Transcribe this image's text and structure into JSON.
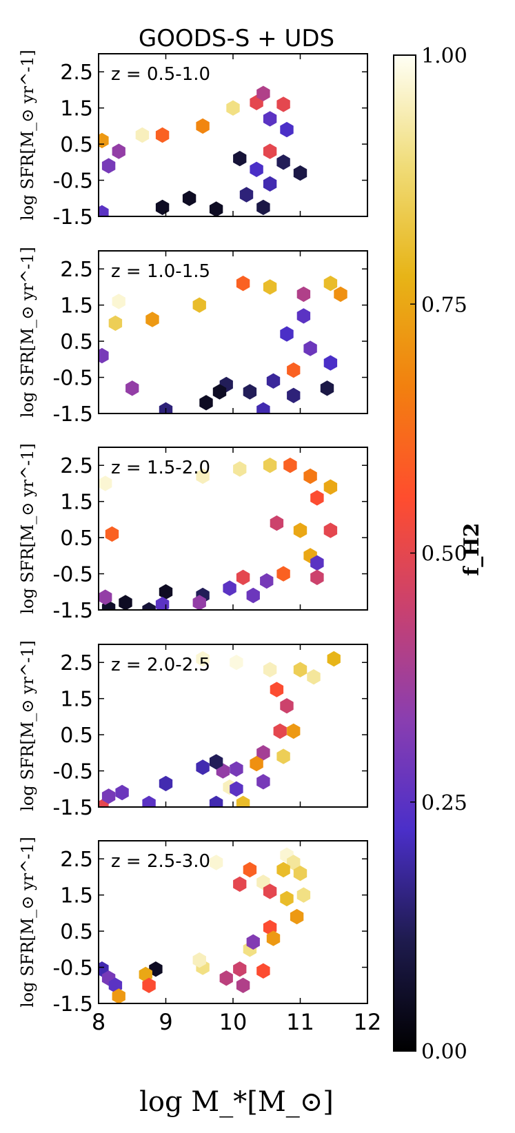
{
  "figure": {
    "title": "GOODS-S + UDS",
    "xlabel": "log M_*[M_⊙]",
    "ylabel": "log SFR[M_⊙ yr^-1]",
    "x_ticks": [
      "8",
      "9",
      "10",
      "11",
      "12"
    ],
    "y_ticks": [
      "2.5",
      "1.5",
      "0.5",
      "-0.5",
      "-1.5"
    ],
    "colorbar": {
      "label": "f_H2",
      "ticks": [
        "1.00",
        "0.75",
        "0.50",
        "0.25",
        "0.00"
      ],
      "range": [
        0,
        1
      ],
      "colormap": [
        "#000000",
        "#1e1b4e",
        "#4b2fc9",
        "#8a3eb0",
        "#c9416f",
        "#ff4d2e",
        "#f2800f",
        "#e7b417",
        "#f0dc78",
        "#fffff5"
      ]
    }
  },
  "chart_data": [
    {
      "type": "hexbin",
      "label": "z = 0.5-1.0",
      "xlim": [
        8,
        12
      ],
      "ylim": [
        -1.5,
        3.0
      ],
      "xlabel": "log M_*[M_⊙]",
      "ylabel": "log SFR[M_⊙ yr^-1]",
      "bins": [
        {
          "x": 8.05,
          "y": 0.6,
          "f": 0.72
        },
        {
          "x": 8.65,
          "y": 0.75,
          "f": 0.95
        },
        {
          "x": 8.95,
          "y": 0.75,
          "f": 0.6
        },
        {
          "x": 9.55,
          "y": 1.0,
          "f": 0.68
        },
        {
          "x": 10.0,
          "y": 1.5,
          "f": 0.9
        },
        {
          "x": 10.35,
          "y": 1.65,
          "f": 0.5
        },
        {
          "x": 10.45,
          "y": 1.9,
          "f": 0.4
        },
        {
          "x": 10.75,
          "y": 1.6,
          "f": 0.5
        },
        {
          "x": 10.55,
          "y": 1.2,
          "f": 0.25
        },
        {
          "x": 10.8,
          "y": 0.9,
          "f": 0.22
        },
        {
          "x": 10.55,
          "y": 0.3,
          "f": 0.5
        },
        {
          "x": 10.75,
          "y": 0.0,
          "f": 0.12
        },
        {
          "x": 10.35,
          "y": -0.2,
          "f": 0.22
        },
        {
          "x": 11.0,
          "y": -0.3,
          "f": 0.1
        },
        {
          "x": 10.55,
          "y": -0.6,
          "f": 0.2
        },
        {
          "x": 10.2,
          "y": -0.9,
          "f": 0.15
        },
        {
          "x": 10.45,
          "y": -1.25,
          "f": 0.1
        },
        {
          "x": 9.75,
          "y": -1.3,
          "f": 0.05
        },
        {
          "x": 9.35,
          "y": -1.0,
          "f": 0.05
        },
        {
          "x": 8.95,
          "y": -1.25,
          "f": 0.05
        },
        {
          "x": 8.15,
          "y": -0.1,
          "f": 0.3
        },
        {
          "x": 8.05,
          "y": -1.4,
          "f": 0.25
        },
        {
          "x": 8.3,
          "y": 0.3,
          "f": 0.35
        },
        {
          "x": 10.1,
          "y": 0.1,
          "f": 0.08
        }
      ]
    },
    {
      "type": "hexbin",
      "label": "z = 1.0-1.5",
      "xlim": [
        8,
        12
      ],
      "ylim": [
        -1.5,
        3.0
      ],
      "xlabel": "log M_*[M_⊙]",
      "ylabel": "log SFR[M_⊙ yr^-1]",
      "bins": [
        {
          "x": 8.3,
          "y": 1.6,
          "f": 0.97
        },
        {
          "x": 8.25,
          "y": 1.0,
          "f": 0.85
        },
        {
          "x": 8.8,
          "y": 1.1,
          "f": 0.72
        },
        {
          "x": 9.5,
          "y": 1.5,
          "f": 0.8
        },
        {
          "x": 10.15,
          "y": 2.1,
          "f": 0.6
        },
        {
          "x": 10.55,
          "y": 2.0,
          "f": 0.8
        },
        {
          "x": 11.05,
          "y": 1.8,
          "f": 0.4
        },
        {
          "x": 11.45,
          "y": 2.1,
          "f": 0.8
        },
        {
          "x": 11.6,
          "y": 1.8,
          "f": 0.7
        },
        {
          "x": 11.05,
          "y": 1.2,
          "f": 0.25
        },
        {
          "x": 10.8,
          "y": 0.7,
          "f": 0.22
        },
        {
          "x": 11.15,
          "y": 0.3,
          "f": 0.28
        },
        {
          "x": 11.45,
          "y": -0.1,
          "f": 0.22
        },
        {
          "x": 10.9,
          "y": -0.3,
          "f": 0.6
        },
        {
          "x": 10.6,
          "y": -0.6,
          "f": 0.18
        },
        {
          "x": 10.25,
          "y": -0.9,
          "f": 0.12
        },
        {
          "x": 10.9,
          "y": -1.0,
          "f": 0.15
        },
        {
          "x": 11.4,
          "y": -0.8,
          "f": 0.1
        },
        {
          "x": 9.6,
          "y": -1.2,
          "f": 0.05
        },
        {
          "x": 9.0,
          "y": -1.4,
          "f": 0.15
        },
        {
          "x": 10.45,
          "y": -1.4,
          "f": 0.2
        },
        {
          "x": 8.05,
          "y": 0.1,
          "f": 0.3
        },
        {
          "x": 8.5,
          "y": -0.8,
          "f": 0.35
        },
        {
          "x": 9.9,
          "y": -0.7,
          "f": 0.12
        },
        {
          "x": 9.8,
          "y": -0.9,
          "f": 0.05
        }
      ]
    },
    {
      "type": "hexbin",
      "label": "z = 1.5-2.0",
      "xlim": [
        8,
        12
      ],
      "ylim": [
        -1.5,
        3.0
      ],
      "xlabel": "log M_*[M_⊙]",
      "ylabel": "log SFR[M_⊙ yr^-1]",
      "bins": [
        {
          "x": 8.1,
          "y": 2.0,
          "f": 0.97
        },
        {
          "x": 9.55,
          "y": 2.2,
          "f": 0.95
        },
        {
          "x": 10.1,
          "y": 2.4,
          "f": 0.92
        },
        {
          "x": 10.55,
          "y": 2.5,
          "f": 0.85
        },
        {
          "x": 10.85,
          "y": 2.5,
          "f": 0.6
        },
        {
          "x": 11.15,
          "y": 2.2,
          "f": 0.65
        },
        {
          "x": 11.45,
          "y": 1.9,
          "f": 0.75
        },
        {
          "x": 11.25,
          "y": 1.6,
          "f": 0.55
        },
        {
          "x": 11.45,
          "y": 0.7,
          "f": 0.5
        },
        {
          "x": 11.0,
          "y": 0.7,
          "f": 0.75
        },
        {
          "x": 11.15,
          "y": 0.0,
          "f": 0.75
        },
        {
          "x": 11.25,
          "y": -0.2,
          "f": 0.25
        },
        {
          "x": 11.25,
          "y": -0.6,
          "f": 0.45
        },
        {
          "x": 10.75,
          "y": -0.5,
          "f": 0.6
        },
        {
          "x": 10.5,
          "y": -0.7,
          "f": 0.3
        },
        {
          "x": 10.15,
          "y": -0.6,
          "f": 0.5
        },
        {
          "x": 9.95,
          "y": -0.9,
          "f": 0.25
        },
        {
          "x": 9.55,
          "y": -1.1,
          "f": 0.12
        },
        {
          "x": 9.0,
          "y": -1.0,
          "f": 0.05
        },
        {
          "x": 8.95,
          "y": -1.35,
          "f": 0.25
        },
        {
          "x": 8.4,
          "y": -1.3,
          "f": 0.05
        },
        {
          "x": 8.75,
          "y": -1.5,
          "f": 0.08
        },
        {
          "x": 8.15,
          "y": -1.45,
          "f": 0.06
        },
        {
          "x": 8.1,
          "y": -1.15,
          "f": 0.35
        },
        {
          "x": 10.3,
          "y": -1.1,
          "f": 0.28
        },
        {
          "x": 8.2,
          "y": 0.6,
          "f": 0.6
        },
        {
          "x": 10.65,
          "y": 0.9,
          "f": 0.45
        },
        {
          "x": 9.5,
          "y": -1.3,
          "f": 0.35
        }
      ]
    },
    {
      "type": "hexbin",
      "label": "z = 2.0-2.5",
      "xlim": [
        8,
        12
      ],
      "ylim": [
        -1.5,
        3.0
      ],
      "xlabel": "log M_*[M_⊙]",
      "ylabel": "log SFR[M_⊙ yr^-1]",
      "bins": [
        {
          "x": 11.5,
          "y": 2.6,
          "f": 0.78
        },
        {
          "x": 11.0,
          "y": 2.3,
          "f": 0.85
        },
        {
          "x": 11.2,
          "y": 2.1,
          "f": 0.92
        },
        {
          "x": 10.55,
          "y": 2.3,
          "f": 0.95
        },
        {
          "x": 9.55,
          "y": 2.6,
          "f": 0.97
        },
        {
          "x": 10.05,
          "y": 2.5,
          "f": 0.98
        },
        {
          "x": 10.65,
          "y": 1.75,
          "f": 0.55
        },
        {
          "x": 10.8,
          "y": 1.3,
          "f": 0.45
        },
        {
          "x": 10.7,
          "y": 0.6,
          "f": 0.5
        },
        {
          "x": 10.9,
          "y": 0.6,
          "f": 0.72
        },
        {
          "x": 10.75,
          "y": -0.1,
          "f": 0.85
        },
        {
          "x": 10.45,
          "y": 0.0,
          "f": 0.38
        },
        {
          "x": 10.35,
          "y": -0.3,
          "f": 0.7
        },
        {
          "x": 10.05,
          "y": -0.45,
          "f": 0.3
        },
        {
          "x": 9.85,
          "y": -0.5,
          "f": 0.35
        },
        {
          "x": 9.75,
          "y": -0.25,
          "f": 0.12
        },
        {
          "x": 9.55,
          "y": -0.4,
          "f": 0.2
        },
        {
          "x": 9.95,
          "y": -0.95,
          "f": 0.95
        },
        {
          "x": 10.05,
          "y": -1.0,
          "f": 0.25
        },
        {
          "x": 10.45,
          "y": -0.8,
          "f": 0.3
        },
        {
          "x": 9.75,
          "y": -1.4,
          "f": 0.2
        },
        {
          "x": 10.15,
          "y": -1.4,
          "f": 0.8
        },
        {
          "x": 8.75,
          "y": -1.4,
          "f": 0.25
        },
        {
          "x": 8.05,
          "y": -1.5,
          "f": 0.5
        },
        {
          "x": 8.15,
          "y": -1.2,
          "f": 0.3
        },
        {
          "x": 8.35,
          "y": -1.1,
          "f": 0.28
        },
        {
          "x": 9.0,
          "y": -0.85,
          "f": 0.2
        }
      ]
    },
    {
      "type": "hexbin",
      "label": "z = 2.5-3.0",
      "xlim": [
        8,
        12
      ],
      "ylim": [
        -1.5,
        3.0
      ],
      "xlabel": "log M_*[M_⊙]",
      "ylabel": "log SFR[M_⊙ yr^-1]",
      "bins": [
        {
          "x": 10.8,
          "y": 2.6,
          "f": 0.97
        },
        {
          "x": 10.9,
          "y": 2.4,
          "f": 0.92
        },
        {
          "x": 11.0,
          "y": 2.1,
          "f": 0.85
        },
        {
          "x": 10.75,
          "y": 2.2,
          "f": 0.8
        },
        {
          "x": 10.25,
          "y": 2.2,
          "f": 0.6
        },
        {
          "x": 10.45,
          "y": 1.85,
          "f": 0.95
        },
        {
          "x": 10.1,
          "y": 1.8,
          "f": 0.5
        },
        {
          "x": 9.75,
          "y": 2.4,
          "f": 0.97
        },
        {
          "x": 11.05,
          "y": 1.5,
          "f": 0.9
        },
        {
          "x": 10.8,
          "y": 1.4,
          "f": 0.8
        },
        {
          "x": 10.55,
          "y": 1.6,
          "f": 0.5
        },
        {
          "x": 10.95,
          "y": 0.9,
          "f": 0.72
        },
        {
          "x": 10.55,
          "y": 0.6,
          "f": 0.55
        },
        {
          "x": 10.6,
          "y": 0.3,
          "f": 0.72
        },
        {
          "x": 10.45,
          "y": -0.6,
          "f": 0.55
        },
        {
          "x": 10.1,
          "y": -0.55,
          "f": 0.45
        },
        {
          "x": 10.15,
          "y": -1.0,
          "f": 0.4
        },
        {
          "x": 9.9,
          "y": -0.8,
          "f": 0.42
        },
        {
          "x": 9.55,
          "y": -0.5,
          "f": 0.9
        },
        {
          "x": 9.5,
          "y": -0.3,
          "f": 0.95
        },
        {
          "x": 8.85,
          "y": -0.55,
          "f": 0.05
        },
        {
          "x": 8.7,
          "y": -0.7,
          "f": 0.75
        },
        {
          "x": 8.75,
          "y": -1.0,
          "f": 0.55
        },
        {
          "x": 8.05,
          "y": -0.55,
          "f": 0.2
        },
        {
          "x": 8.15,
          "y": -0.8,
          "f": 0.3
        },
        {
          "x": 8.25,
          "y": -1.0,
          "f": 0.25
        },
        {
          "x": 8.3,
          "y": -1.3,
          "f": 0.72
        },
        {
          "x": 10.25,
          "y": 0.0,
          "f": 0.9
        },
        {
          "x": 10.3,
          "y": 0.2,
          "f": 0.32
        }
      ]
    }
  ]
}
